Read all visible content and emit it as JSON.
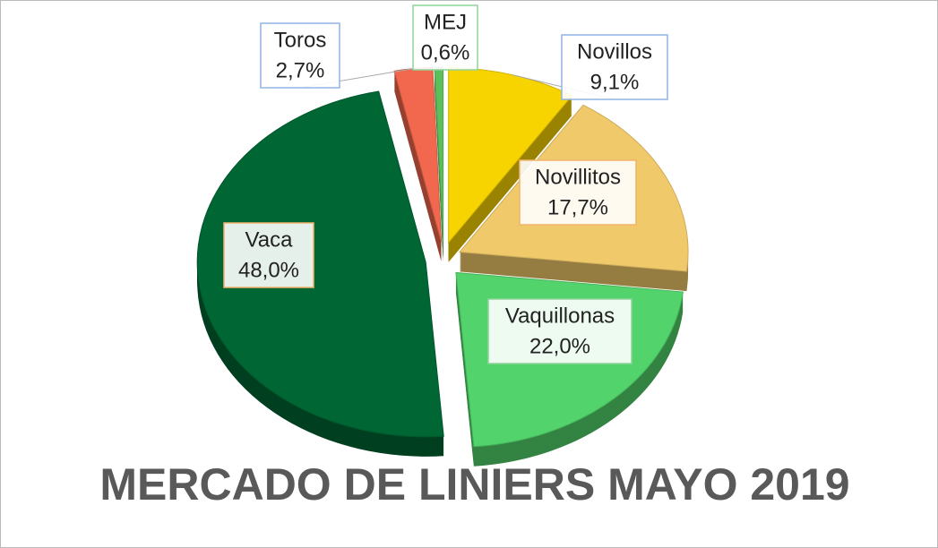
{
  "chart_data": {
    "type": "pie",
    "title": "MERCADO DE LINIERS MAYO 2019",
    "categories": [
      "Novillos",
      "Novillitos",
      "Vaquillonas",
      "Vaca",
      "Toros",
      "MEJ"
    ],
    "values": [
      9.1,
      17.7,
      22.0,
      48.0,
      2.7,
      0.6
    ],
    "value_labels": [
      "9,1%",
      "17,7%",
      "22,0%",
      "48,0%",
      "2,7%",
      "0,6%"
    ],
    "colors": [
      "#f7d300",
      "#f0c96b",
      "#52d36b",
      "#006633",
      "#f2684e",
      "#5cbf5c"
    ]
  }
}
